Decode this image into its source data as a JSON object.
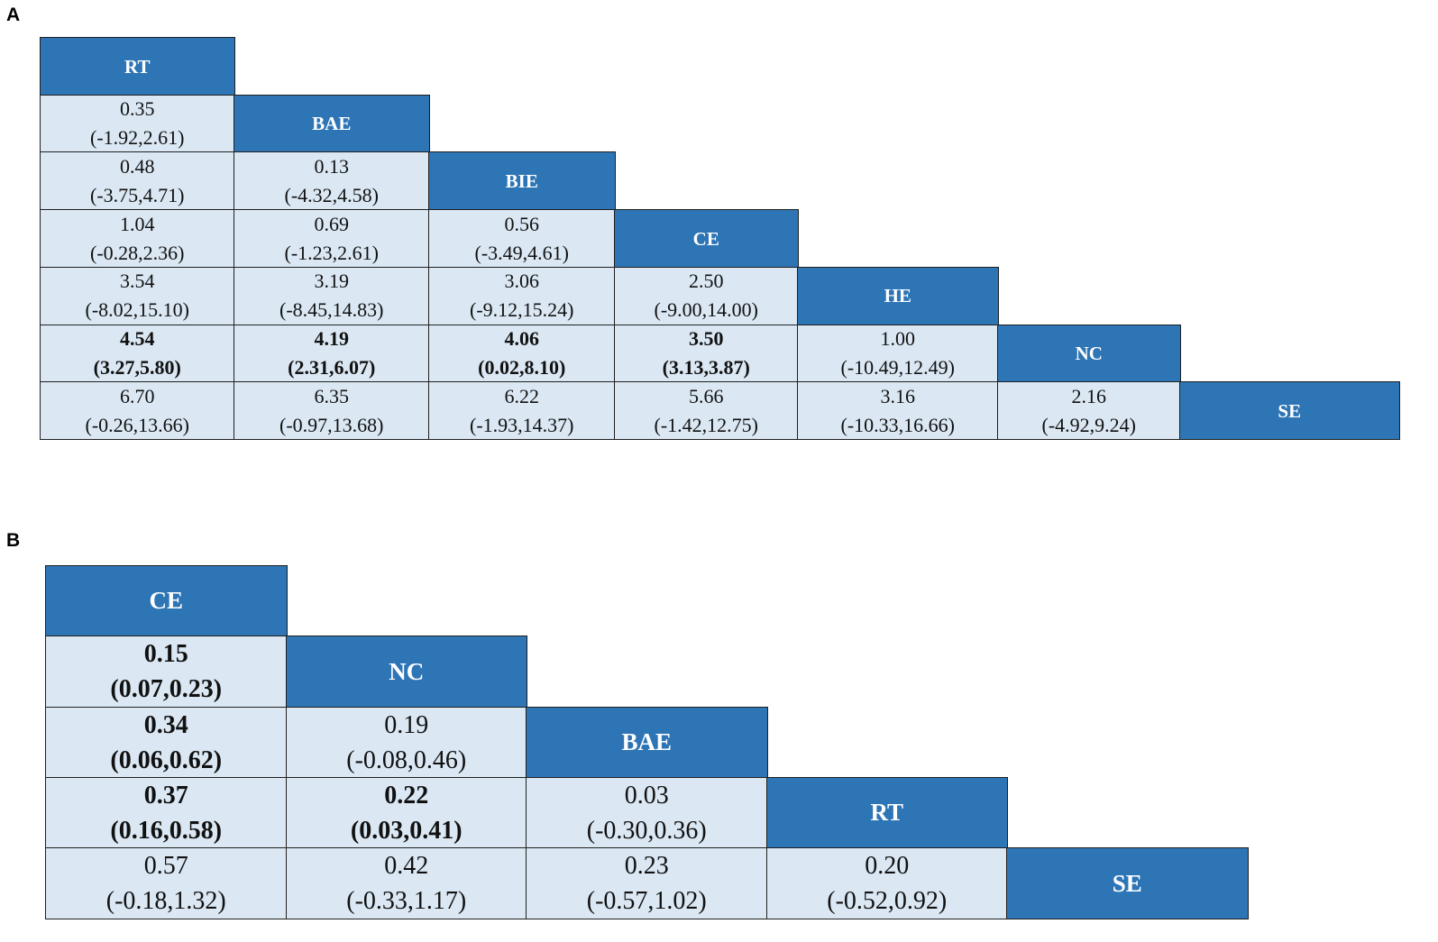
{
  "panels": [
    {
      "label": "A",
      "treatments": [
        "RT",
        "BAE",
        "BIE",
        "CE",
        "HE",
        "NC",
        "SE"
      ],
      "cells": [
        [
          "0.35",
          "(-1.92,2.61)",
          false
        ],
        [
          "0.48",
          "(-3.75,4.71)",
          false
        ],
        [
          "0.13",
          "(-4.32,4.58)",
          false
        ],
        [
          "1.04",
          "(-0.28,2.36)",
          false
        ],
        [
          "0.69",
          "(-1.23,2.61)",
          false
        ],
        [
          "0.56",
          "(-3.49,4.61)",
          false
        ],
        [
          "3.54",
          "(-8.02,15.10)",
          false
        ],
        [
          "3.19",
          "(-8.45,14.83)",
          false
        ],
        [
          "3.06",
          "(-9.12,15.24)",
          false
        ],
        [
          "2.50",
          "(-9.00,14.00)",
          false
        ],
        [
          "4.54",
          "(3.27,5.80)",
          true
        ],
        [
          "4.19",
          "(2.31,6.07)",
          true
        ],
        [
          "4.06",
          "(0.02,8.10)",
          true
        ],
        [
          "3.50",
          "(3.13,3.87)",
          true
        ],
        [
          "1.00",
          "(-10.49,12.49)",
          false
        ],
        [
          "6.70",
          "(-0.26,13.66)",
          false
        ],
        [
          "6.35",
          "(-0.97,13.68)",
          false
        ],
        [
          "6.22",
          "(-1.93,14.37)",
          false
        ],
        [
          "5.66",
          "(-1.42,12.75)",
          false
        ],
        [
          "3.16",
          "(-10.33,16.66)",
          false
        ],
        [
          "2.16",
          "(-4.92,9.24)",
          false
        ]
      ]
    },
    {
      "label": "B",
      "treatments": [
        "CE",
        "NC",
        "BAE",
        "RT",
        "SE"
      ],
      "cells": [
        [
          "0.15",
          "(0.07,0.23)",
          true
        ],
        [
          "0.34",
          "(0.06,0.62)",
          true
        ],
        [
          "0.19",
          "(-0.08,0.46)",
          false
        ],
        [
          "0.37",
          "(0.16,0.58)",
          true
        ],
        [
          "0.22",
          "(0.03,0.41)",
          true
        ],
        [
          "0.03",
          "(-0.30,0.36)",
          false
        ],
        [
          "0.57",
          "(-0.18,1.32)",
          false
        ],
        [
          "0.42",
          "(-0.33,1.17)",
          false
        ],
        [
          "0.23",
          "(-0.57,1.02)",
          false
        ],
        [
          "0.20",
          "(-0.52,0.92)",
          false
        ]
      ]
    }
  ],
  "colors": {
    "header_fill": "#2e75b6",
    "cell_fill": "#dbe8f4",
    "border": "#1f1f1f"
  }
}
